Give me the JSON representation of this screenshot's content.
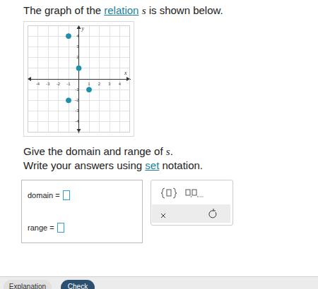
{
  "question": {
    "line1": [
      "The graph of the ",
      "relation",
      " ",
      "s",
      " is shown below."
    ],
    "line2": [
      "Give the domain and range of ",
      "s",
      "."
    ],
    "line3": [
      "Write your answers using ",
      "set",
      " notation."
    ]
  },
  "answer": {
    "domain_label": "domain =",
    "range_label": "range ="
  },
  "buttons": [
    "Explanation",
    "Check"
  ],
  "chart_data": {
    "type": "scatter",
    "x_label": "x",
    "y_label": "y",
    "x": [
      -1,
      0,
      1,
      -1
    ],
    "values": [
      4,
      1,
      -1,
      -2
    ],
    "color": "#1e8fae",
    "xlim": [
      -5,
      5
    ],
    "ylim": [
      -5,
      5
    ],
    "xticks": [
      -4,
      -3,
      -2,
      -1,
      1,
      2,
      3,
      4
    ],
    "yticks": [
      -4,
      -3,
      -2,
      -1,
      1,
      2,
      3,
      4
    ],
    "grid": true
  }
}
